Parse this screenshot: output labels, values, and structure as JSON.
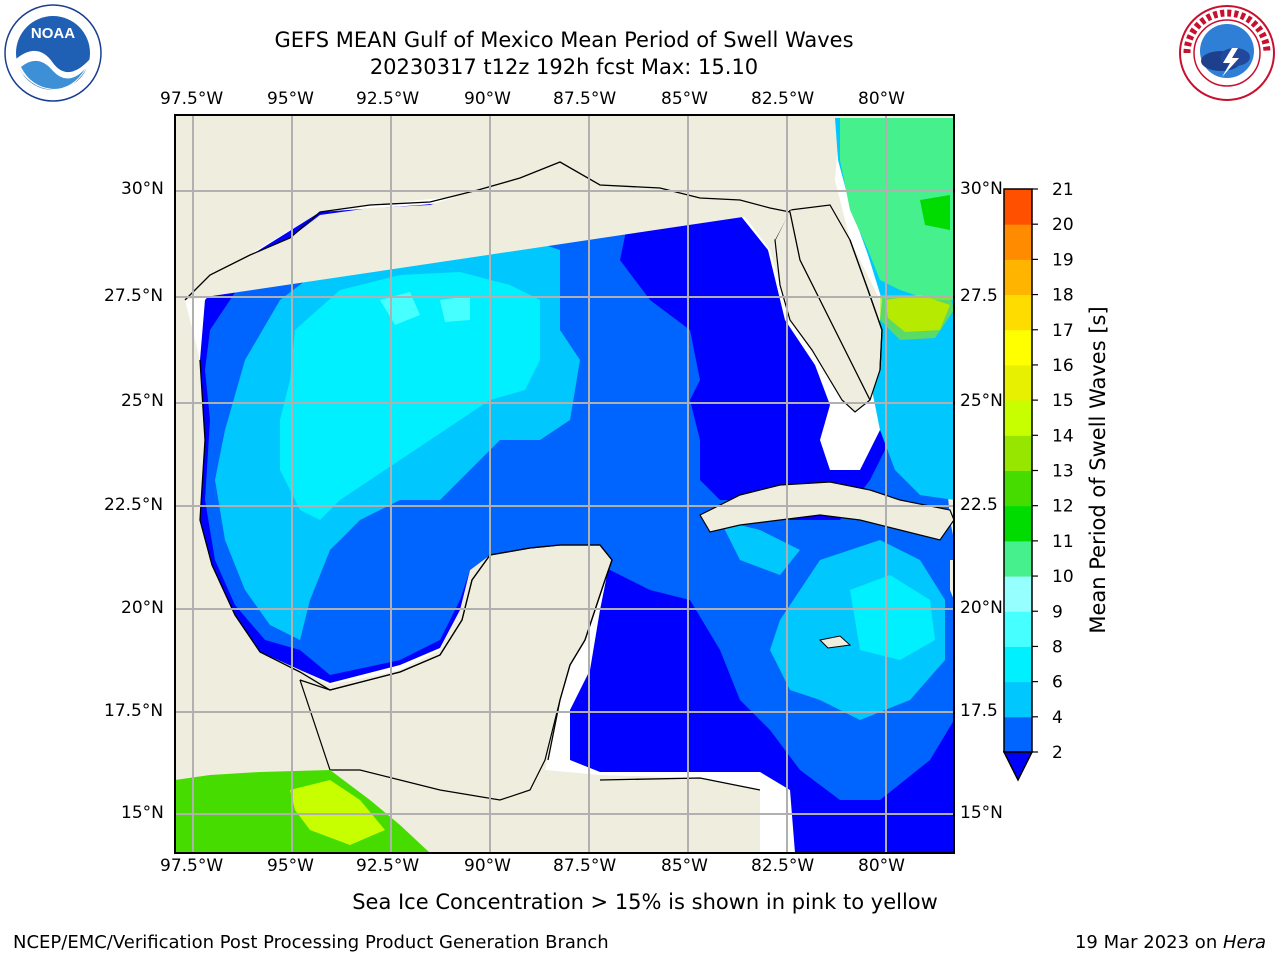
{
  "title": {
    "line1": "GEFS MEAN Gulf of Mexico Mean Period of Swell Waves",
    "line2": "20230317 t12z 192h fcst   Max: 15.10"
  },
  "map": {
    "lon_labels": [
      "97.5°W",
      "95°W",
      "92.5°W",
      "90°W",
      "87.5°W",
      "85°W",
      "82.5°W",
      "80°W"
    ],
    "lat_labels": [
      "30°N",
      "27.5°N",
      "25°N",
      "22.5°N",
      "20°N",
      "17.5°N",
      "15°N"
    ],
    "right_lat_labels": [
      "30°N",
      "27.5",
      "25°N",
      "22.5",
      "20°N",
      "17.5",
      "15°N"
    ],
    "colors": {
      "land": "#eeedde",
      "grid": "#b0b0b0",
      "coast": "#000000"
    }
  },
  "colorbar": {
    "label": "Mean Period of Swell Waves [s]",
    "ticks": [
      "2",
      "4",
      "6",
      "8",
      "9",
      "10",
      "11",
      "12",
      "13",
      "14",
      "15",
      "16",
      "17",
      "18",
      "19",
      "20",
      "21"
    ],
    "colors": [
      "#0064ff",
      "#00c8ff",
      "#00f0ff",
      "#46ffff",
      "#96ffff",
      "#46f08c",
      "#00dc00",
      "#46dc00",
      "#96e600",
      "#c8ff00",
      "#e6f000",
      "#ffff00",
      "#ffdc00",
      "#ffb400",
      "#ff8c00",
      "#ff5000",
      "#ff2800",
      "#ff0000"
    ],
    "under_color": "#0000ff"
  },
  "logos": {
    "left": "NOAA",
    "left_ring": "NATIONAL OCEANIC AND ATMOSPHERIC ADMINISTRATION · U.S. DEPARTMENT OF COMMERCE",
    "right_ring": "NATIONAL WEATHER SERVICE"
  },
  "note": "Sea Ice Concentration > 15% is shown in pink to yellow",
  "footer": {
    "left": "NCEP/EMC/Verification Post Processing Product Generation Branch",
    "date": "19 Mar 2023 on ",
    "machine": "Hera"
  }
}
